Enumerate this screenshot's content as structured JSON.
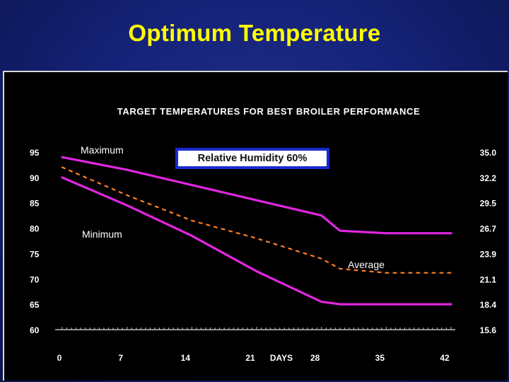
{
  "slide": {
    "title": "Optimum Temperature"
  },
  "annotation_box": {
    "label": "Relative Humidity 60%"
  },
  "colors": {
    "background": "#16237a",
    "title": "#ffff00",
    "panel": "#000000",
    "series_line": "#e026e0",
    "average_line": "#ff7f27",
    "box_border": "#1a2bd0"
  },
  "chart_data": {
    "type": "line",
    "title": "TARGET TEMPERATURES FOR BEST BROILER PERFORMANCE",
    "xlabel": "DAYS",
    "x_ticks": [
      "0",
      "7",
      "14",
      "21",
      "28",
      "35",
      "42"
    ],
    "xlim": [
      0,
      42
    ],
    "ylim": [
      60,
      96
    ],
    "y_left_ticks": [
      "95",
      "90",
      "85",
      "80",
      "75",
      "70",
      "65",
      "60"
    ],
    "y_right_ticks": [
      "35.0",
      "32.2",
      "29.5",
      "26.7",
      "23.9",
      "21.1",
      "18.4",
      "15.6"
    ],
    "grid": false,
    "series": [
      {
        "name": "Maximum",
        "style": "solid",
        "x": [
          0,
          7,
          14,
          21,
          28,
          30,
          35,
          42
        ],
        "y": [
          94,
          91.5,
          88.5,
          85.5,
          82.5,
          79.5,
          79,
          79
        ]
      },
      {
        "name": "Average",
        "style": "dashed",
        "x": [
          0,
          7,
          14,
          21,
          28,
          30,
          35,
          42
        ],
        "y": [
          92,
          86.5,
          81.5,
          78,
          74,
          72,
          71.2,
          71.2
        ]
      },
      {
        "name": "Minimum",
        "style": "solid",
        "x": [
          0,
          7,
          14,
          21,
          28,
          30,
          35,
          42
        ],
        "y": [
          90,
          84.5,
          78.5,
          71.5,
          65.5,
          65,
          65,
          65
        ]
      }
    ]
  }
}
